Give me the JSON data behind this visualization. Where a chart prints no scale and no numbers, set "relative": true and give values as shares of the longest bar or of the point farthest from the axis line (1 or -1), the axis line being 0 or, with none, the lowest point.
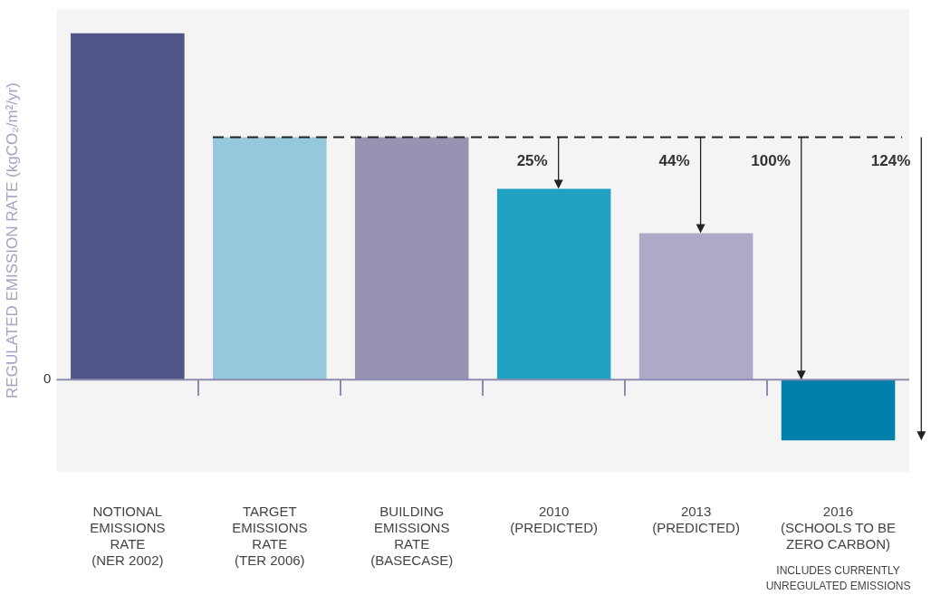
{
  "chart_data": {
    "type": "bar",
    "relative": true,
    "ylabel": "REGULATED EMISSION RATE (kgCO₂/m²/yr)",
    "categories": [
      "NOTIONAL\nEMISSIONS\nRATE\n(NER 2002)",
      "TARGET\nEMISSIONS\nRATE\n(TER 2006)",
      "BUILDING\nEMISSIONS\nRATE\n(BASECASE)",
      "2010\n(PREDICTED)",
      "2013\n(PREDICTED)",
      "2016\n(SCHOOLS TO BE\nZERO CARBON)"
    ],
    "values": [
      1,
      0.7,
      0.7,
      0.551,
      0.423,
      -0.175
    ],
    "colors": [
      "#4f5586",
      "#96c8dd",
      "#9794b3",
      "#21a1c2",
      "#acaac7",
      "#0080aa"
    ],
    "ref_lines": [
      {
        "axis": "y",
        "value": 0.7,
        "color": "#222222",
        "line_style": "dashed"
      }
    ],
    "annotations": [
      "0",
      "25%",
      "44%",
      "100%",
      "124%",
      "INCLUDES CURRENTLY\nUNREGULATED EMISSIONS"
    ]
  }
}
